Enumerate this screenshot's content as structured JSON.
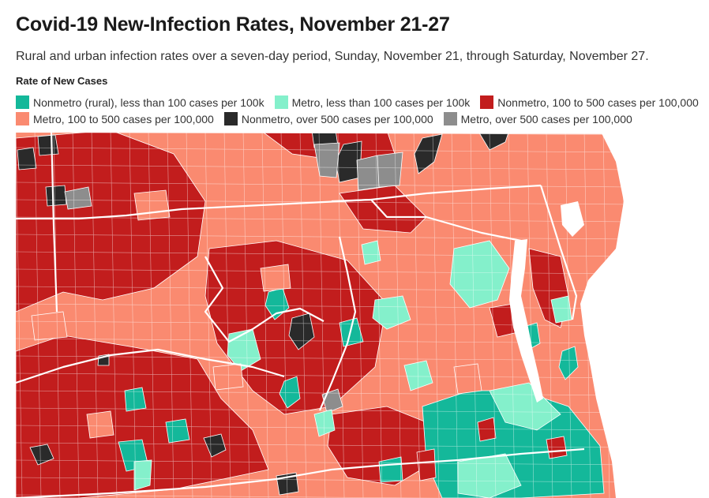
{
  "header": {
    "title": "Covid-19 New-Infection Rates, November 21-27",
    "subtitle": "Rural and urban infection rates over a seven-day period, Sunday, November 21, through Saturday, November 27."
  },
  "legend": {
    "title": "Rate of New Cases",
    "items": [
      {
        "key": "nonmetro_low",
        "label": "Nonmetro (rural), less than 100 cases per 100k",
        "color": "#14b89a"
      },
      {
        "key": "metro_low",
        "label": "Metro, less than 100 cases per 100k",
        "color": "#84f0cb"
      },
      {
        "key": "nonmetro_mid",
        "label": "Nonmetro, 100 to 500 cases per 100,000",
        "color": "#c21d1d"
      },
      {
        "key": "metro_mid",
        "label": "Metro, 100 to 500 cases per 100,000",
        "color": "#fa8a70"
      },
      {
        "key": "nonmetro_high",
        "label": "Nonmetro, over 500 cases per 100,000",
        "color": "#2a2a2a"
      },
      {
        "key": "metro_high",
        "label": "Metro, over 500 cases per 100,000",
        "color": "#8d8d8d"
      }
    ]
  }
}
